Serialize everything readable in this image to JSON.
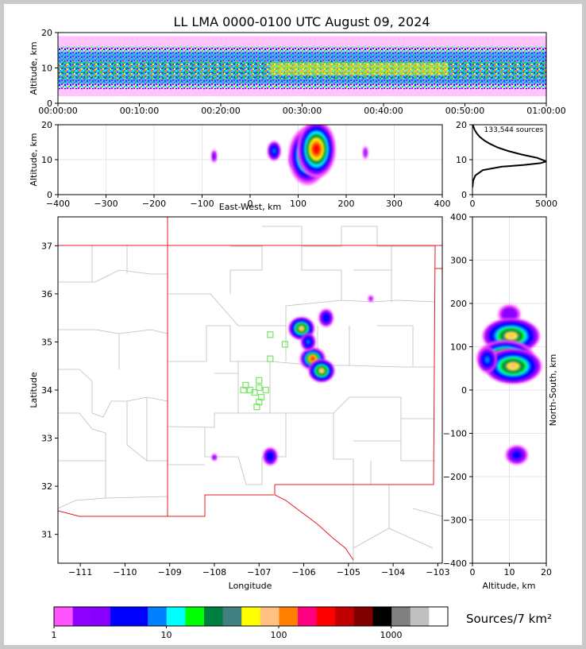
{
  "title": "LL LMA 0000-0100 UTC August 09, 2024",
  "colors": {
    "state_border": "#e41a1c",
    "county_line": "#b3b3b3",
    "station_marker": "#7ee66a"
  },
  "chart_data": [
    {
      "id": "time-height",
      "type": "heatmap",
      "ylabel": "Altitude, km",
      "ylim": [
        0,
        20
      ],
      "yticks": [
        "0",
        "10",
        "20"
      ],
      "xticks": [
        "00:00:00",
        "00:10:00",
        "00:20:00",
        "00:30:00",
        "00:40:00",
        "00:50:00",
        "01:00:00"
      ],
      "xlim_minutes": [
        0,
        60
      ],
      "core_altitude_km": [
        7,
        12
      ]
    },
    {
      "id": "ew-altitude",
      "type": "heatmap",
      "xlabel": "East-West, km",
      "ylabel": "Altitude, km",
      "xlim": [
        -400,
        400
      ],
      "ylim": [
        0,
        20
      ],
      "xticks": [
        "−400",
        "−300",
        "−200",
        "−100",
        "0",
        "100",
        "200",
        "300",
        "400"
      ],
      "yticks": [
        "0",
        "10",
        "20"
      ],
      "cells": [
        {
          "x": -75,
          "z": 11,
          "level": 2
        },
        {
          "x": 50,
          "z": 12.5,
          "level": 5
        },
        {
          "x": 95,
          "z": 10,
          "level": 10
        },
        {
          "x": 120,
          "z": 11,
          "level": 13
        },
        {
          "x": 138,
          "z": 13,
          "level": 15
        },
        {
          "x": 240,
          "z": 12,
          "level": 1
        }
      ]
    },
    {
      "id": "altitude-histogram",
      "type": "line",
      "annotation": "133,544 sources",
      "xlim": [
        0,
        5000
      ],
      "ylim": [
        0,
        20
      ],
      "xticks": [
        "0",
        "5000"
      ],
      "yticks": [
        "0",
        "10",
        "20"
      ],
      "x": [
        0,
        50,
        200,
        700,
        2000,
        3500,
        4600,
        5000,
        4400,
        3300,
        2400,
        1700,
        1200,
        800,
        500,
        300,
        150,
        60,
        20
      ],
      "y": [
        2,
        4,
        5.5,
        7,
        8,
        8.5,
        9,
        9.5,
        10.5,
        11.5,
        12.5,
        13.5,
        14.5,
        15.5,
        16.5,
        17.5,
        18.5,
        19.5,
        20
      ]
    },
    {
      "id": "plan-view",
      "type": "heatmap",
      "xlabel": "Longitude",
      "ylabel": "Latitude",
      "xlim": [
        -111.5,
        -102.9
      ],
      "ylim": [
        30.4,
        37.6
      ],
      "xticks": [
        "−111",
        "−110",
        "−109",
        "−108",
        "−107",
        "−106",
        "−105",
        "−104",
        "−103"
      ],
      "yticks": [
        "31",
        "32",
        "33",
        "34",
        "35",
        "36",
        "37"
      ],
      "cells": [
        {
          "lon": -106.05,
          "lat": 35.28,
          "level": 11
        },
        {
          "lon": -105.8,
          "lat": 34.65,
          "level": 14
        },
        {
          "lon": -105.6,
          "lat": 34.4,
          "level": 11
        },
        {
          "lon": -105.5,
          "lat": 35.5,
          "level": 4
        },
        {
          "lon": -105.9,
          "lat": 35.0,
          "level": 5
        },
        {
          "lon": -106.75,
          "lat": 32.62,
          "level": 4
        },
        {
          "lon": -108.0,
          "lat": 32.6,
          "level": 2
        },
        {
          "lon": -104.5,
          "lat": 35.9,
          "level": 1
        }
      ],
      "stations": [
        {
          "lon": -106.75,
          "lat": 35.15
        },
        {
          "lon": -106.42,
          "lat": 34.95
        },
        {
          "lon": -106.75,
          "lat": 34.65
        },
        {
          "lon": -107.0,
          "lat": 34.2
        },
        {
          "lon": -107.0,
          "lat": 34.05
        },
        {
          "lon": -107.3,
          "lat": 34.1
        },
        {
          "lon": -107.35,
          "lat": 34.0
        },
        {
          "lon": -107.2,
          "lat": 34.0
        },
        {
          "lon": -107.1,
          "lat": 33.95
        },
        {
          "lon": -106.85,
          "lat": 34.0
        },
        {
          "lon": -106.95,
          "lat": 33.85
        },
        {
          "lon": -107.0,
          "lat": 33.75
        },
        {
          "lon": -107.05,
          "lat": 33.65
        }
      ]
    },
    {
      "id": "altitude-ns",
      "type": "heatmap",
      "xlabel": "Altitude, km",
      "ylabel": "North-South, km",
      "xlim": [
        0,
        20
      ],
      "ylim": [
        -400,
        400
      ],
      "xticks": [
        "0",
        "10",
        "20"
      ],
      "yticks": [
        "−400",
        "−300",
        "−200",
        "−100",
        "0",
        "100",
        "200",
        "300",
        "400"
      ],
      "cells": [
        {
          "z": 10,
          "y": 175,
          "level": 2
        },
        {
          "z": 10.5,
          "y": 125,
          "level": 11
        },
        {
          "z": 9,
          "y": 75,
          "level": 15
        },
        {
          "z": 11,
          "y": 55,
          "level": 11
        },
        {
          "z": 4,
          "y": 70,
          "level": 5
        },
        {
          "z": 12,
          "y": -150,
          "level": 3
        }
      ]
    }
  ],
  "colorbar": {
    "label": "Sources/7 km²",
    "ticks": [
      "1",
      "10",
      "100",
      "1000"
    ],
    "colors": [
      "#ff55ff",
      "#8e00ff",
      "#8800ff",
      "#0000ff",
      "#0000ff",
      "#0080ff",
      "#00ffff",
      "#00ff00",
      "#008040",
      "#408080",
      "#ffff00",
      "#ffc080",
      "#ff8000",
      "#ff0080",
      "#ff0000",
      "#c00000",
      "#800000",
      "#000000",
      "#808080",
      "#c0c0c0",
      "#ffffff"
    ]
  }
}
